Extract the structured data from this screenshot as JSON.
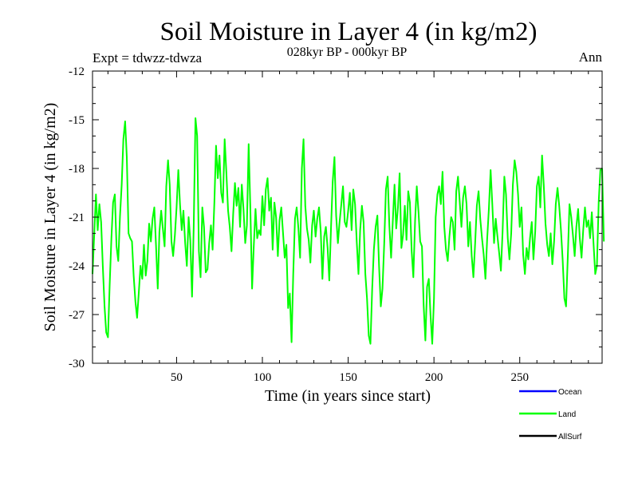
{
  "chart_data": {
    "type": "line",
    "title": "Soil Moisture in Layer 4 (in kg/m2)",
    "subtitle": "028kyr BP - 000kyr BP",
    "left_note": "Expt = tdwzz-tdwza",
    "right_note": "Ann",
    "xlabel": "Time (in years since start)",
    "ylabel": "Soil Moisture in Layer 4 (in kg/m2)",
    "xlim": [
      1,
      298
    ],
    "ylim": [
      -30,
      -12
    ],
    "xticks": [
      50,
      100,
      150,
      200,
      250
    ],
    "yticks": [
      -12,
      -15,
      -18,
      -21,
      -24,
      -27,
      -30
    ],
    "legend": [
      {
        "name": "Ocean",
        "color": "#0000ff"
      },
      {
        "name": "Land",
        "color": "#00ff00"
      },
      {
        "name": "AllSurf",
        "color": "#000000"
      }
    ],
    "series": [
      {
        "name": "Land",
        "color": "#00ff00",
        "x_start": 1,
        "x_step": 1,
        "values": [
          -24.5,
          -22.0,
          -19.6,
          -21.8,
          -20.2,
          -21.3,
          -24.0,
          -26.5,
          -28.1,
          -28.4,
          -25.2,
          -22.3,
          -20.1,
          -19.6,
          -22.8,
          -23.7,
          -21.0,
          -19.0,
          -16.2,
          -15.1,
          -17.3,
          -22.0,
          -22.3,
          -22.5,
          -24.6,
          -26.2,
          -27.2,
          -25.6,
          -24.0,
          -24.8,
          -22.7,
          -24.6,
          -23.7,
          -21.4,
          -22.5,
          -21.1,
          -20.4,
          -22.7,
          -25.4,
          -21.9,
          -20.6,
          -21.7,
          -22.8,
          -19.1,
          -17.5,
          -19.0,
          -22.5,
          -23.4,
          -22.1,
          -20.4,
          -18.1,
          -20.2,
          -21.8,
          -20.6,
          -22.6,
          -24.0,
          -21.0,
          -22.4,
          -25.9,
          -21.6,
          -14.9,
          -16.0,
          -23.1,
          -24.7,
          -20.4,
          -21.6,
          -24.4,
          -24.2,
          -22.6,
          -21.5,
          -23.0,
          -20.1,
          -16.6,
          -18.6,
          -17.2,
          -19.5,
          -20.1,
          -16.2,
          -18.2,
          -20.6,
          -21.6,
          -23.1,
          -20.8,
          -18.9,
          -20.3,
          -19.2,
          -21.6,
          -19.0,
          -20.5,
          -22.6,
          -21.5,
          -16.5,
          -20.4,
          -25.4,
          -22.8,
          -20.5,
          -22.3,
          -21.8,
          -22.1,
          -19.7,
          -21.5,
          -19.3,
          -18.6,
          -20.6,
          -19.8,
          -23.0,
          -20.1,
          -21.0,
          -23.4,
          -21.2,
          -20.4,
          -21.9,
          -23.5,
          -22.7,
          -26.6,
          -25.7,
          -28.7,
          -24.5,
          -21.1,
          -20.4,
          -21.7,
          -23.5,
          -18.0,
          -16.2,
          -20.3,
          -21.7,
          -22.4,
          -23.8,
          -21.5,
          -20.6,
          -22.2,
          -21.1,
          -20.4,
          -21.9,
          -24.8,
          -22.2,
          -21.6,
          -22.9,
          -24.9,
          -21.6,
          -18.8,
          -17.3,
          -20.9,
          -22.6,
          -21.3,
          -20.2,
          -19.1,
          -21.3,
          -21.6,
          -20.6,
          -19.5,
          -21.8,
          -19.3,
          -20.2,
          -22.5,
          -24.5,
          -21.8,
          -20.3,
          -21.3,
          -24.5,
          -26.0,
          -28.3,
          -28.8,
          -25.4,
          -23.0,
          -21.6,
          -20.9,
          -24.0,
          -26.5,
          -25.4,
          -22.6,
          -19.3,
          -18.5,
          -21.5,
          -23.5,
          -21.3,
          -19.0,
          -21.7,
          -20.4,
          -18.3,
          -22.9,
          -22.1,
          -20.3,
          -22.4,
          -19.4,
          -20.1,
          -23.1,
          -24.7,
          -21.2,
          -19.1,
          -20.7,
          -22.5,
          -22.8,
          -26.4,
          -28.6,
          -25.3,
          -24.8,
          -27.0,
          -28.8,
          -26.0,
          -21.0,
          -19.6,
          -19.1,
          -20.2,
          -18.2,
          -21.6,
          -23.0,
          -23.7,
          -22.2,
          -21.0,
          -21.3,
          -23.0,
          -19.4,
          -18.5,
          -20.0,
          -21.6,
          -19.8,
          -19.1,
          -20.2,
          -22.8,
          -21.3,
          -23.4,
          -24.7,
          -22.6,
          -20.3,
          -19.4,
          -21.1,
          -22.3,
          -23.3,
          -24.8,
          -22.4,
          -20.5,
          -18.1,
          -20.2,
          -22.6,
          -21.1,
          -22.2,
          -23.2,
          -24.3,
          -21.9,
          -18.5,
          -19.6,
          -22.3,
          -23.6,
          -22.0,
          -19.0,
          -17.5,
          -18.2,
          -19.6,
          -21.6,
          -20.4,
          -23.3,
          -24.5,
          -22.9,
          -23.6,
          -22.3,
          -21.3,
          -23.6,
          -21.9,
          -19.1,
          -18.5,
          -20.4,
          -17.2,
          -19.0,
          -21.4,
          -22.7,
          -23.4,
          -22.0,
          -23.9,
          -22.5,
          -20.2,
          -19.2,
          -20.3,
          -21.8,
          -23.6,
          -26.0,
          -26.5,
          -23.4,
          -20.2,
          -21.0,
          -22.1,
          -23.4,
          -21.6,
          -20.5,
          -22.3,
          -23.5,
          -21.8,
          -20.4,
          -21.6,
          -21.2,
          -22.3,
          -20.7,
          -22.6,
          -24.5,
          -24.0,
          -20.1,
          -18.1,
          -18.0,
          -22.5
        ]
      }
    ]
  }
}
